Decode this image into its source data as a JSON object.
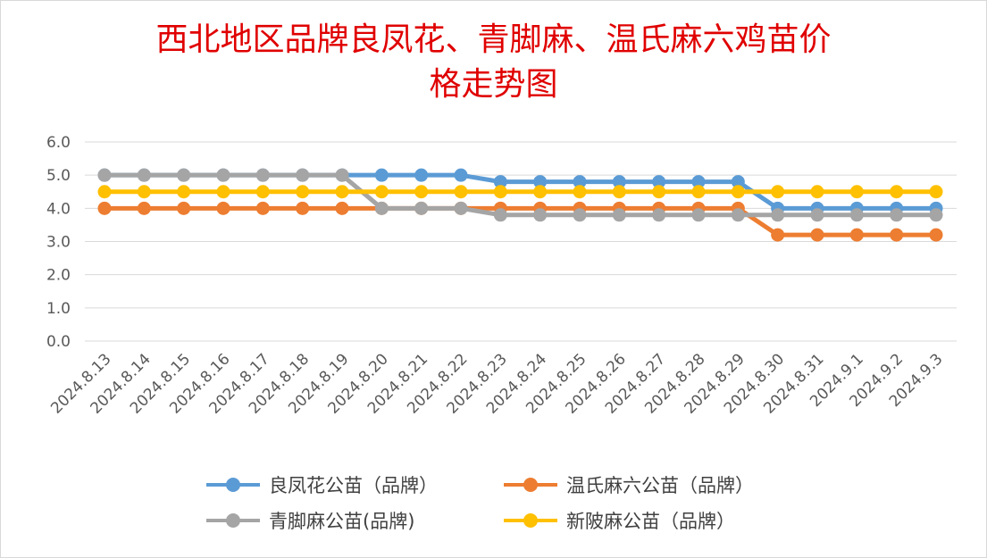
{
  "chart_data": {
    "type": "line",
    "title": "西北地区品牌良凤花、青脚麻、温氏麻六鸡苗价格走势图",
    "title_lines": [
      "西北地区品牌良凤花、青脚麻、温氏麻六鸡苗价",
      "格走势图"
    ],
    "categories": [
      "2024.8.13",
      "2024.8.14",
      "2024.8.15",
      "2024.8.16",
      "2024.8.17",
      "2024.8.18",
      "2024.8.19",
      "2024.8.20",
      "2024.8.21",
      "2024.8.22",
      "2024.8.23",
      "2024.8.24",
      "2024.8.25",
      "2024.8.26",
      "2024.8.27",
      "2024.8.28",
      "2024.8.29",
      "2024.8.30",
      "2024.8.31",
      "2024.9.1",
      "2024.9.2",
      "2024.9.3"
    ],
    "ylim": [
      0,
      6
    ],
    "yticks": [
      "0.0",
      "1.0",
      "2.0",
      "3.0",
      "4.0",
      "5.0",
      "6.0"
    ],
    "grid": true,
    "legend_position": "bottom",
    "series": [
      {
        "name": "良凤花公苗（品牌）",
        "color": "#5b9bd5",
        "values": [
          5.0,
          5.0,
          5.0,
          5.0,
          5.0,
          5.0,
          5.0,
          5.0,
          5.0,
          5.0,
          4.8,
          4.8,
          4.8,
          4.8,
          4.8,
          4.8,
          4.8,
          4.0,
          4.0,
          4.0,
          4.0,
          4.0
        ]
      },
      {
        "name": "温氏麻六公苗（品牌）",
        "color": "#ed7d31",
        "values": [
          4.0,
          4.0,
          4.0,
          4.0,
          4.0,
          4.0,
          4.0,
          4.0,
          4.0,
          4.0,
          4.0,
          4.0,
          4.0,
          4.0,
          4.0,
          4.0,
          4.0,
          3.2,
          3.2,
          3.2,
          3.2,
          3.2
        ]
      },
      {
        "name": "青脚麻公苗(品牌)",
        "color": "#a5a5a5",
        "values": [
          5.0,
          5.0,
          5.0,
          5.0,
          5.0,
          5.0,
          5.0,
          4.0,
          4.0,
          4.0,
          3.8,
          3.8,
          3.8,
          3.8,
          3.8,
          3.8,
          3.8,
          3.8,
          3.8,
          3.8,
          3.8,
          3.8
        ]
      },
      {
        "name": "新陂麻公苗（品牌）",
        "color": "#ffc000",
        "values": [
          4.5,
          4.5,
          4.5,
          4.5,
          4.5,
          4.5,
          4.5,
          4.5,
          4.5,
          4.5,
          4.5,
          4.5,
          4.5,
          4.5,
          4.5,
          4.5,
          4.5,
          4.5,
          4.5,
          4.5,
          4.5,
          4.5
        ]
      }
    ]
  }
}
